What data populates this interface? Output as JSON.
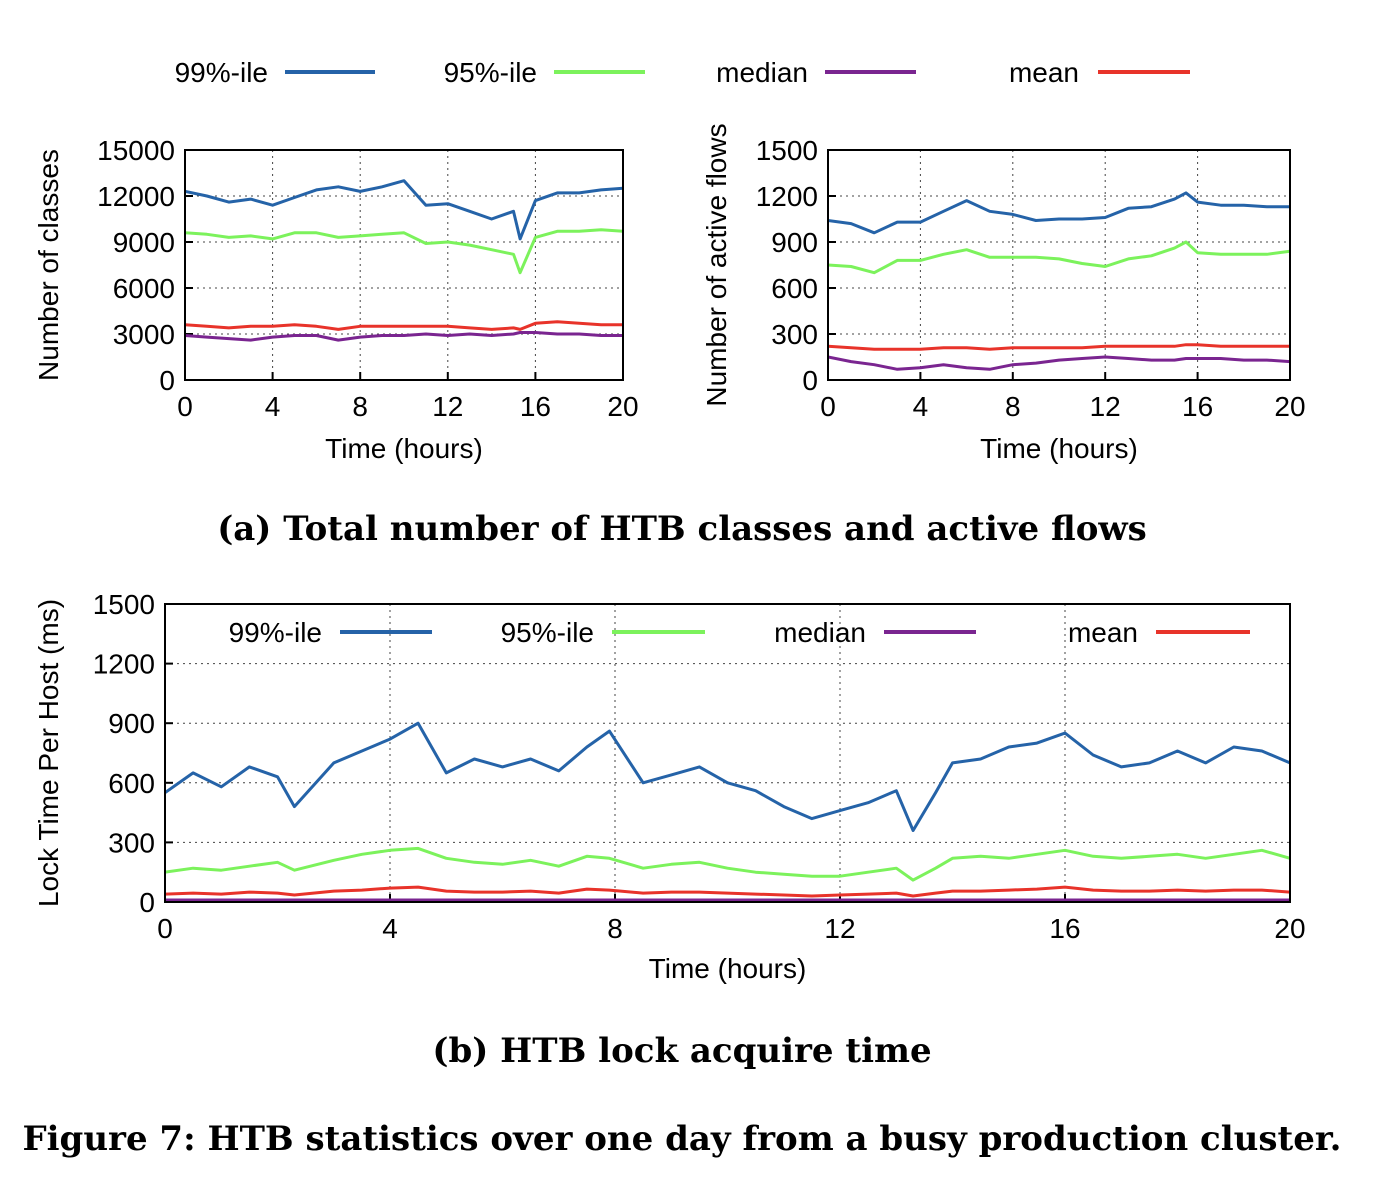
{
  "colors": {
    "p99": "#2563a8",
    "p95": "#7cf25c",
    "median": "#7a2590",
    "mean": "#e8332a"
  },
  "legend": [
    "99%-ile",
    "95%-ile",
    "median",
    "mean"
  ],
  "caption": "Figure 7: HTB statistics over one day from a busy production cluster.",
  "chart_data": [
    {
      "type": "line",
      "subcaption": "(a) Total number of HTB classes and active flows",
      "xlabel": "Time (hours)",
      "ylabel": "Number of classes",
      "xlim": [
        0,
        20
      ],
      "ylim": [
        0,
        15000
      ],
      "xticks": [
        "0",
        "4",
        "8",
        "12",
        "16",
        "20"
      ],
      "yticks": [
        "0",
        "3000",
        "6000",
        "9000",
        "12000",
        "15000"
      ],
      "grid": true,
      "legend_position": "top (shared)",
      "x": [
        0,
        1,
        2,
        3,
        4,
        5,
        6,
        7,
        8,
        9,
        10,
        11,
        12,
        13,
        14,
        15,
        15.3,
        16,
        17,
        18,
        19,
        20
      ],
      "series": [
        {
          "name": "99%-ile",
          "values": [
            12300,
            12000,
            11600,
            11800,
            11400,
            11900,
            12400,
            12600,
            12300,
            12600,
            13000,
            11400,
            11500,
            11000,
            10500,
            11000,
            9200,
            11700,
            12200,
            12200,
            12400,
            12500
          ]
        },
        {
          "name": "95%-ile",
          "values": [
            9600,
            9500,
            9300,
            9400,
            9200,
            9600,
            9600,
            9300,
            9400,
            9500,
            9600,
            8900,
            9000,
            8800,
            8500,
            8200,
            7000,
            9300,
            9700,
            9700,
            9800,
            9700
          ]
        },
        {
          "name": "median",
          "values": [
            2900,
            2800,
            2700,
            2600,
            2800,
            2900,
            2900,
            2600,
            2800,
            2900,
            2900,
            3000,
            2900,
            3000,
            2900,
            3000,
            3100,
            3100,
            3000,
            3000,
            2900,
            2900
          ]
        },
        {
          "name": "mean",
          "values": [
            3600,
            3500,
            3400,
            3500,
            3500,
            3600,
            3500,
            3300,
            3500,
            3500,
            3500,
            3500,
            3500,
            3400,
            3300,
            3400,
            3300,
            3700,
            3800,
            3700,
            3600,
            3600
          ]
        }
      ]
    },
    {
      "type": "line",
      "xlabel": "Time (hours)",
      "ylabel": "Number of active flows",
      "xlim": [
        0,
        20
      ],
      "ylim": [
        0,
        1500
      ],
      "xticks": [
        "0",
        "4",
        "8",
        "12",
        "16",
        "20"
      ],
      "yticks": [
        "0",
        "300",
        "600",
        "900",
        "1200",
        "1500"
      ],
      "grid": true,
      "legend_position": "top (shared)",
      "x": [
        0,
        1,
        2,
        3,
        4,
        5,
        6,
        7,
        8,
        9,
        10,
        11,
        12,
        13,
        14,
        15,
        15.5,
        16,
        17,
        18,
        19,
        20
      ],
      "series": [
        {
          "name": "99%-ile",
          "values": [
            1040,
            1020,
            960,
            1030,
            1030,
            1100,
            1170,
            1100,
            1080,
            1040,
            1050,
            1050,
            1060,
            1120,
            1130,
            1180,
            1220,
            1160,
            1140,
            1140,
            1130,
            1130
          ]
        },
        {
          "name": "95%-ile",
          "values": [
            750,
            740,
            700,
            780,
            780,
            820,
            850,
            800,
            800,
            800,
            790,
            760,
            740,
            790,
            810,
            860,
            900,
            830,
            820,
            820,
            820,
            840
          ]
        },
        {
          "name": "median",
          "values": [
            150,
            120,
            100,
            70,
            80,
            100,
            80,
            70,
            100,
            110,
            130,
            140,
            150,
            140,
            130,
            130,
            140,
            140,
            140,
            130,
            130,
            120
          ]
        },
        {
          "name": "mean",
          "values": [
            220,
            210,
            200,
            200,
            200,
            210,
            210,
            200,
            210,
            210,
            210,
            210,
            220,
            220,
            220,
            220,
            230,
            230,
            220,
            220,
            220,
            220
          ]
        }
      ]
    },
    {
      "type": "line",
      "subcaption": "(b) HTB lock acquire time",
      "xlabel": "Time (hours)",
      "ylabel": "Lock Time Per Host (ms)",
      "xlim": [
        0,
        20
      ],
      "ylim": [
        0,
        1500
      ],
      "xticks": [
        "0",
        "4",
        "8",
        "12",
        "16",
        "20"
      ],
      "yticks": [
        "0",
        "300",
        "600",
        "900",
        "1200",
        "1500"
      ],
      "grid": true,
      "legend_position": "top (inside)",
      "x": [
        0,
        0.5,
        1,
        1.5,
        2,
        2.3,
        3,
        3.5,
        4,
        4.5,
        5,
        5.5,
        6,
        6.5,
        7,
        7.5,
        7.9,
        8.5,
        9,
        9.5,
        10,
        10.5,
        11,
        11.5,
        12,
        12.5,
        13,
        13.3,
        13.7,
        14,
        14.5,
        15,
        15.5,
        16,
        16.5,
        17,
        17.5,
        18,
        18.5,
        19,
        19.5,
        20
      ],
      "series": [
        {
          "name": "99%-ile",
          "values": [
            550,
            650,
            580,
            680,
            630,
            480,
            700,
            760,
            820,
            900,
            650,
            720,
            680,
            720,
            660,
            780,
            860,
            600,
            640,
            680,
            600,
            560,
            480,
            420,
            460,
            500,
            560,
            360,
            550,
            700,
            720,
            780,
            800,
            850,
            740,
            680,
            700,
            760,
            700,
            780,
            760,
            700
          ]
        },
        {
          "name": "95%-ile",
          "values": [
            150,
            170,
            160,
            180,
            200,
            160,
            210,
            240,
            260,
            270,
            220,
            200,
            190,
            210,
            180,
            230,
            220,
            170,
            190,
            200,
            170,
            150,
            140,
            130,
            130,
            150,
            170,
            110,
            170,
            220,
            230,
            220,
            240,
            260,
            230,
            220,
            230,
            240,
            220,
            240,
            260,
            220
          ]
        },
        {
          "name": "median",
          "values": [
            10,
            10,
            10,
            10,
            10,
            10,
            10,
            10,
            10,
            10,
            10,
            10,
            10,
            10,
            10,
            10,
            10,
            10,
            10,
            10,
            10,
            10,
            10,
            10,
            10,
            10,
            10,
            10,
            10,
            10,
            10,
            10,
            10,
            10,
            10,
            10,
            10,
            10,
            10,
            10,
            10,
            10
          ]
        },
        {
          "name": "mean",
          "values": [
            40,
            45,
            40,
            50,
            45,
            35,
            55,
            60,
            70,
            75,
            55,
            50,
            50,
            55,
            45,
            65,
            60,
            45,
            50,
            50,
            45,
            40,
            35,
            30,
            35,
            40,
            45,
            30,
            45,
            55,
            55,
            60,
            65,
            75,
            60,
            55,
            55,
            60,
            55,
            60,
            60,
            50
          ]
        }
      ]
    }
  ]
}
